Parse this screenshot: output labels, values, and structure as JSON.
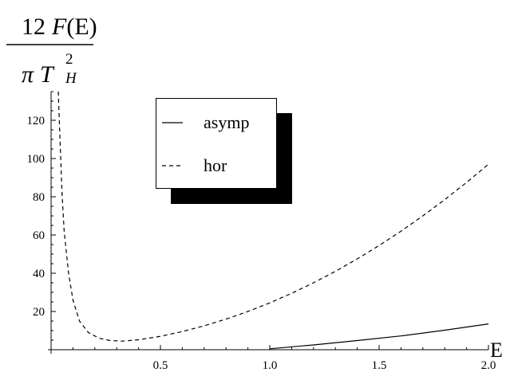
{
  "chart_data": {
    "type": "line",
    "ylabel": {
      "numerator_coeff": "12",
      "numerator_func": "F",
      "numerator_arg": "(E)",
      "denominator_pi": "π",
      "denominator_var": "T",
      "denominator_sub": "H",
      "denominator_sup": "2"
    },
    "xlabel": "E",
    "xlim": [
      0,
      2.0
    ],
    "ylim": [
      0,
      135
    ],
    "x_ticks": [
      {
        "value": 0.5,
        "label": "0.5"
      },
      {
        "value": 1.0,
        "label": "1.0"
      },
      {
        "value": 1.5,
        "label": "1.5"
      },
      {
        "value": 2.0,
        "label": "2.0"
      }
    ],
    "y_ticks": [
      {
        "value": 20,
        "label": "20"
      },
      {
        "value": 40,
        "label": "40"
      },
      {
        "value": 60,
        "label": "60"
      },
      {
        "value": 80,
        "label": "80"
      },
      {
        "value": 100,
        "label": "100"
      },
      {
        "value": 120,
        "label": "120"
      }
    ],
    "legend": {
      "placement": "top-center",
      "entries": [
        {
          "label": "asymp",
          "style": "solid"
        },
        {
          "label": "hor",
          "style": "dashed"
        }
      ]
    },
    "series": [
      {
        "name": "asymp",
        "style": "solid",
        "points": [
          [
            1.0,
            0.5
          ],
          [
            1.2,
            2.5
          ],
          [
            1.4,
            4.8
          ],
          [
            1.6,
            7.2
          ],
          [
            1.8,
            10.2
          ],
          [
            2.0,
            13.5
          ]
        ]
      },
      {
        "name": "hor",
        "style": "dashed",
        "points": [
          [
            0.033,
            135
          ],
          [
            0.04,
            112
          ],
          [
            0.05,
            82
          ],
          [
            0.06,
            62
          ],
          [
            0.08,
            40
          ],
          [
            0.1,
            26
          ],
          [
            0.13,
            15
          ],
          [
            0.17,
            9
          ],
          [
            0.22,
            6
          ],
          [
            0.27,
            4.8
          ],
          [
            0.33,
            4.5
          ],
          [
            0.4,
            5.2
          ],
          [
            0.5,
            7
          ],
          [
            0.6,
            9.5
          ],
          [
            0.7,
            12.5
          ],
          [
            0.8,
            16
          ],
          [
            0.9,
            20
          ],
          [
            1.0,
            24.5
          ],
          [
            1.1,
            29.5
          ],
          [
            1.2,
            35
          ],
          [
            1.3,
            41
          ],
          [
            1.4,
            47.5
          ],
          [
            1.5,
            54.5
          ],
          [
            1.6,
            62
          ],
          [
            1.7,
            70
          ],
          [
            1.8,
            78.5
          ],
          [
            1.9,
            87.5
          ],
          [
            2.0,
            97
          ]
        ]
      }
    ]
  }
}
